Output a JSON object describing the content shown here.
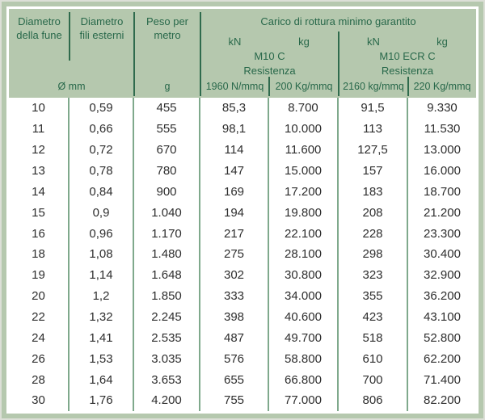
{
  "colors": {
    "frame_green": "#b5c8ae",
    "outer_edge_gray": "#dcdfd7",
    "header_text_green": "#28684a",
    "header_divider_green": "#2f6b4d",
    "body_divider_green": "#7fa98c",
    "body_text": "#2d2d2d"
  },
  "header": {
    "col1_title": "Diametro\ndella fune",
    "col2_title": "Diametro\nfili esterni",
    "col3_title": "Peso per\nmetro",
    "carico_title": "Carico di rottura minimo garantito",
    "m10c": {
      "kn_label": "kN",
      "kg_label": "kg",
      "class_label": "M10 C",
      "resistenza_label": "Resistenza"
    },
    "m10ecrc": {
      "kn_label": "kN",
      "kg_label": "kg",
      "class_label": "M10 ECR C",
      "resistenza_label": "Resistenza"
    },
    "units": {
      "diameter": "Ø mm",
      "weight": "g",
      "kn_m10c": "1960 N/mmq",
      "kg_m10c": "200 Kg/mmq",
      "kn_m10ecrc": "2160 kg/mmq",
      "kg_m10ecrc": "220 Kg/mmq"
    }
  },
  "table": {
    "rows": [
      [
        "10",
        "0,59",
        "455",
        "85,3",
        "8.700",
        "91,5",
        "9.330"
      ],
      [
        "11",
        "0,66",
        "555",
        "98,1",
        "10.000",
        "113",
        "11.530"
      ],
      [
        "12",
        "0,72",
        "670",
        "114",
        "11.600",
        "127,5",
        "13.000"
      ],
      [
        "13",
        "0,78",
        "780",
        "147",
        "15.000",
        "157",
        "16.000"
      ],
      [
        "14",
        "0,84",
        "900",
        "169",
        "17.200",
        "183",
        "18.700"
      ],
      [
        "15",
        "0,9",
        "1.040",
        "194",
        "19.800",
        "208",
        "21.200"
      ],
      [
        "16",
        "0,96",
        "1.170",
        "217",
        "22.100",
        "228",
        "23.300"
      ],
      [
        "18",
        "1,08",
        "1.480",
        "275",
        "28.100",
        "298",
        "30.400"
      ],
      [
        "19",
        "1,14",
        "1.648",
        "302",
        "30.800",
        "323",
        "32.900"
      ],
      [
        "20",
        "1,2",
        "1.850",
        "333",
        "34.000",
        "355",
        "36.200"
      ],
      [
        "22",
        "1,32",
        "2.245",
        "398",
        "40.600",
        "423",
        "43.100"
      ],
      [
        "24",
        "1,41",
        "2.535",
        "487",
        "49.700",
        "518",
        "52.800"
      ],
      [
        "26",
        "1,53",
        "3.035",
        "576",
        "58.800",
        "610",
        "62.200"
      ],
      [
        "28",
        "1,64",
        "3.653",
        "655",
        "66.800",
        "700",
        "71.400"
      ],
      [
        "30",
        "1,76",
        "4.200",
        "755",
        "77.000",
        "806",
        "82.200"
      ]
    ]
  }
}
